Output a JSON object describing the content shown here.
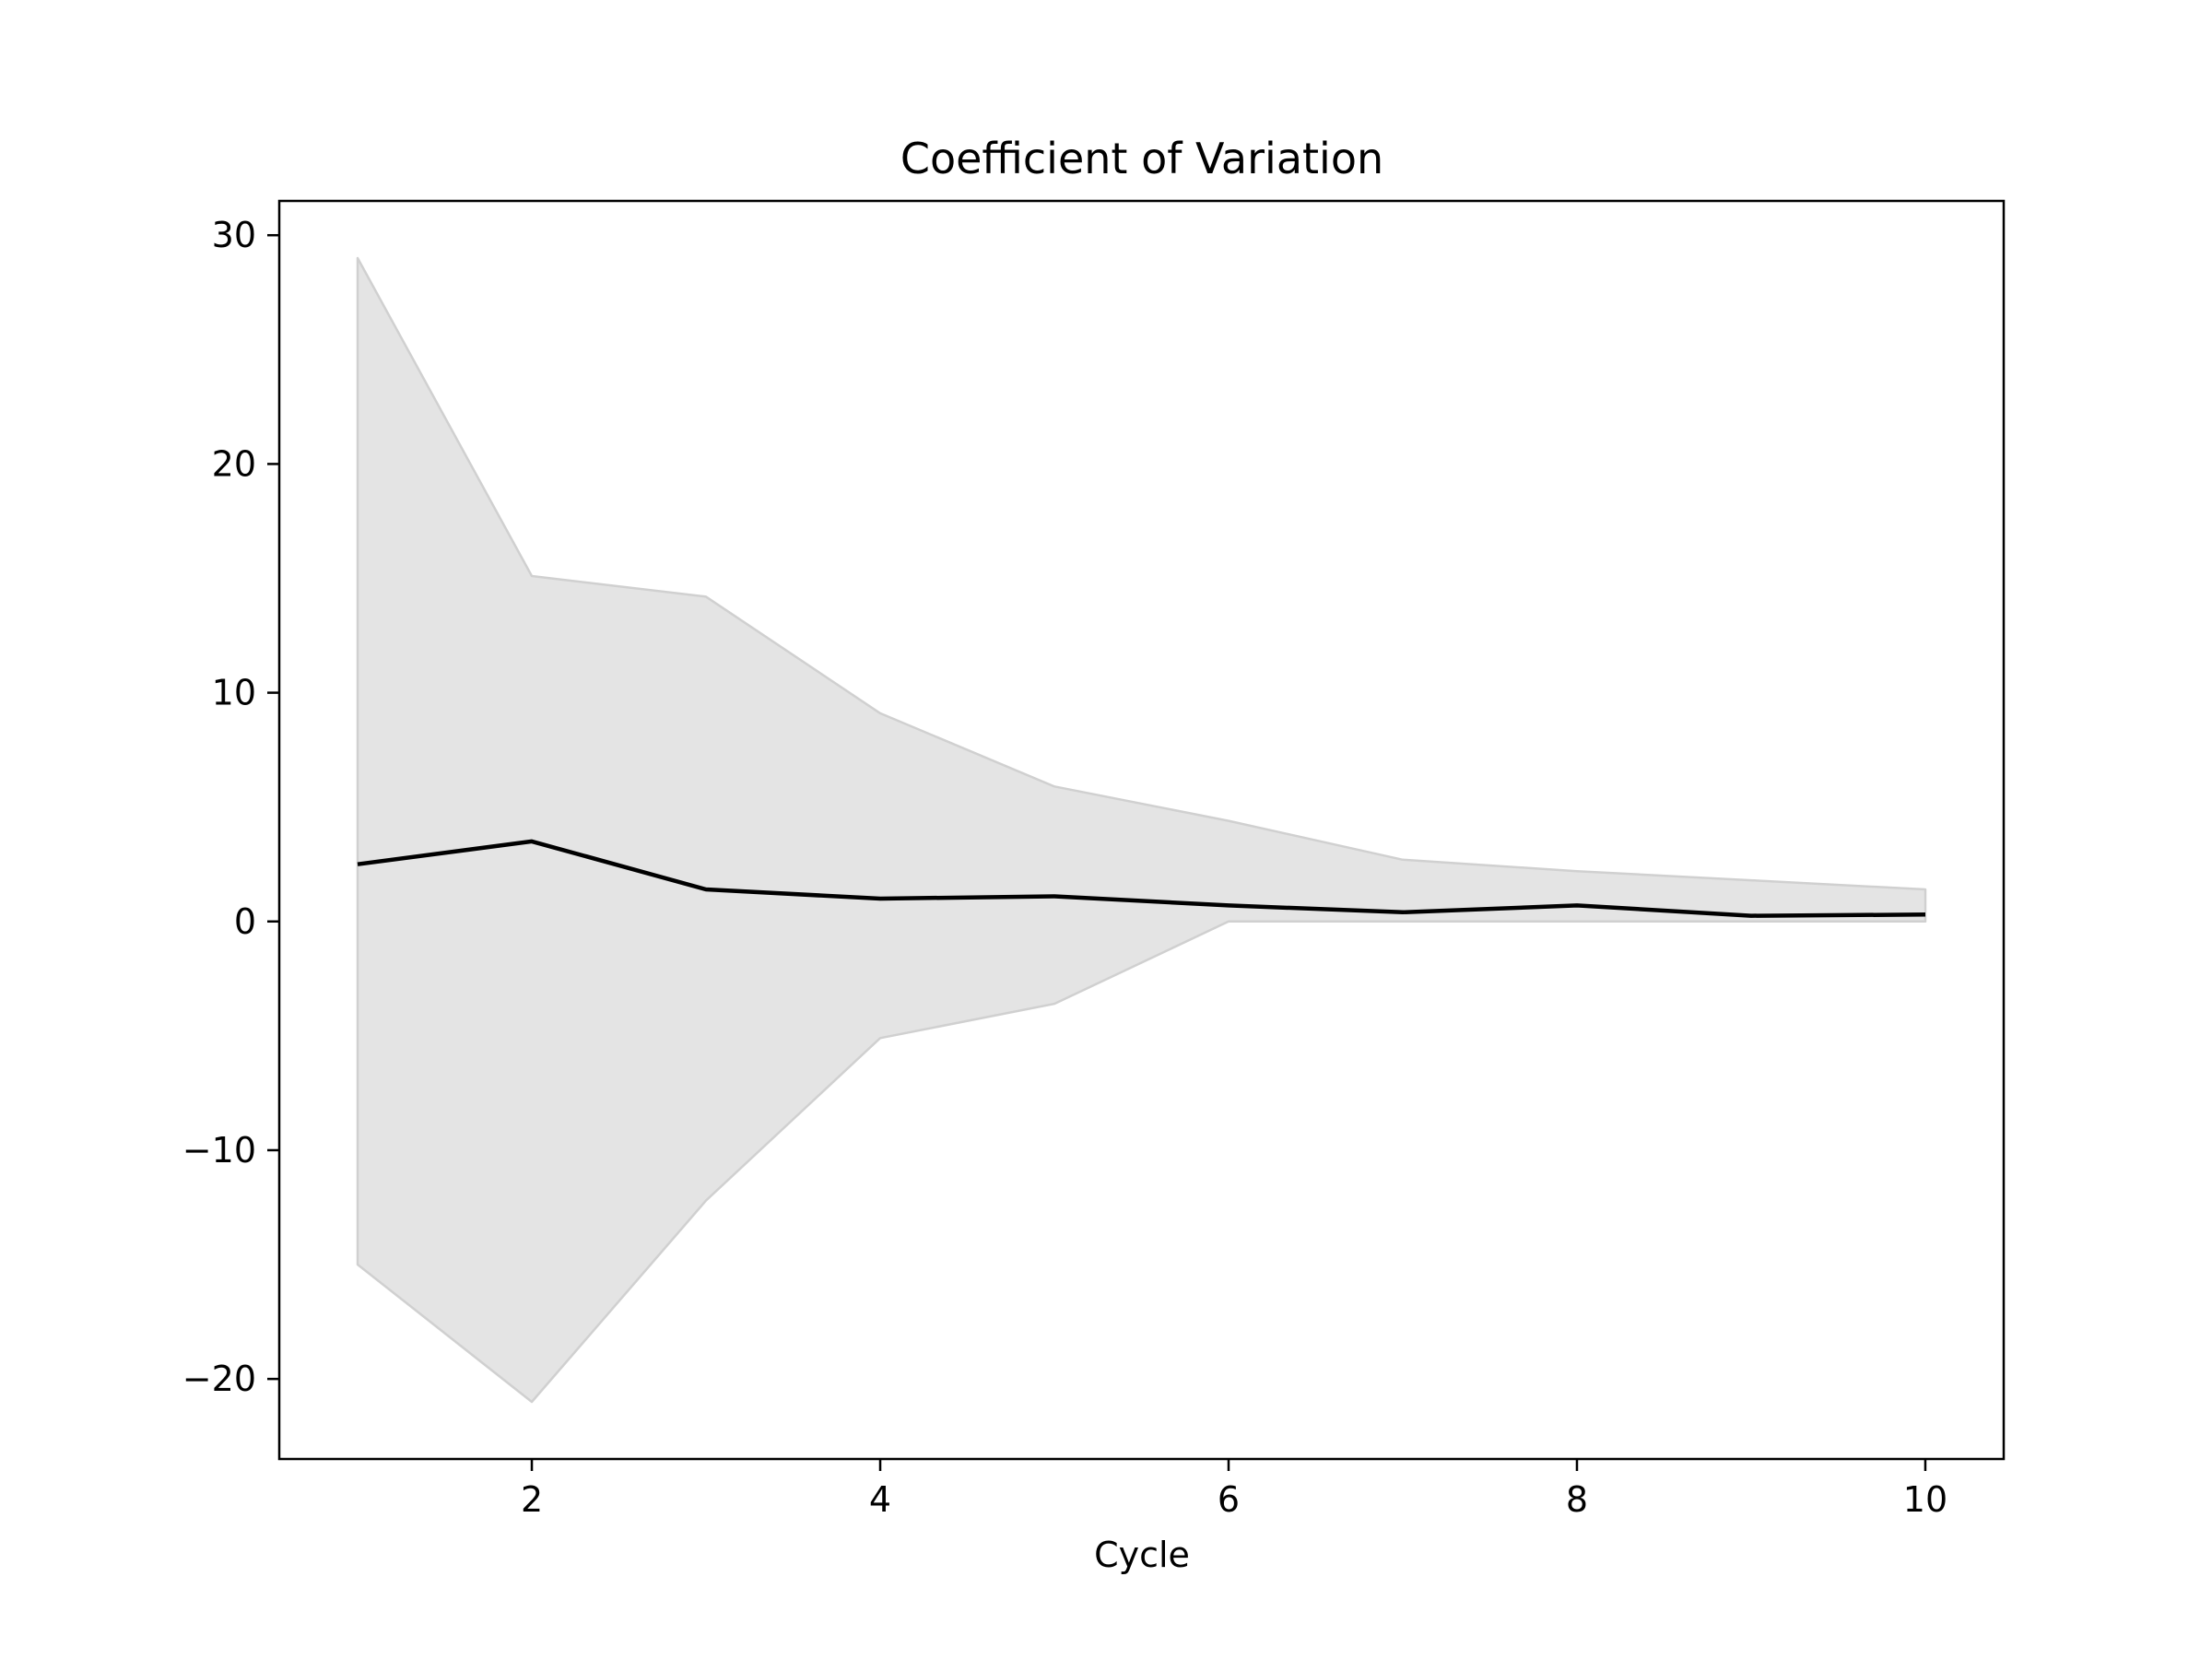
{
  "chart_data": {
    "type": "area",
    "title": "Coefficient of Variation",
    "xlabel": "Cycle",
    "ylabel": "",
    "xlim": [
      0.55,
      10.45
    ],
    "ylim": [
      -23.5,
      31.5
    ],
    "x_ticks": [
      2,
      4,
      6,
      8,
      10
    ],
    "x_tick_labels": [
      "2",
      "4",
      "6",
      "8",
      "10"
    ],
    "y_ticks": [
      30,
      20,
      10,
      0,
      -10,
      -20
    ],
    "y_tick_labels": [
      "30",
      "20",
      "10",
      "0",
      "−10",
      "−20"
    ],
    "grid": false,
    "legend": "none",
    "x": [
      1,
      2,
      3,
      4,
      5,
      6,
      7,
      8,
      9,
      10
    ],
    "series": [
      {
        "role": "mean",
        "values": [
          2.5,
          3.5,
          1.4,
          1.0,
          1.1,
          0.7,
          0.4,
          0.7,
          0.25,
          0.3
        ],
        "color": "#000000"
      }
    ],
    "band": {
      "upper": [
        29.0,
        15.1,
        14.2,
        9.1,
        5.9,
        4.4,
        2.7,
        2.2,
        1.8,
        1.4
      ],
      "lower": [
        -15.0,
        -21.0,
        -12.2,
        -5.1,
        -3.6,
        0.0,
        0.0,
        0.0,
        0.0,
        0.0
      ],
      "fill_color": "#e4e4e4",
      "edge_color": "#d0d0d0"
    }
  }
}
